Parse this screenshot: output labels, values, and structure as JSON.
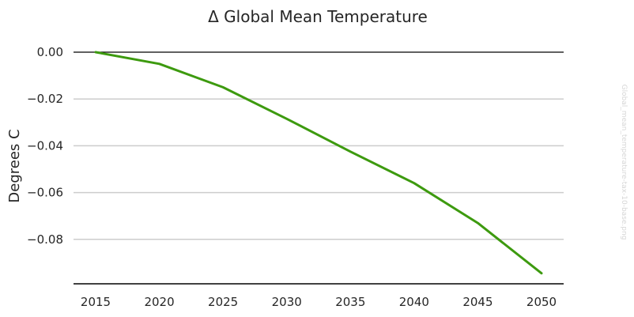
{
  "chart_data": {
    "type": "line",
    "title": "Δ Global Mean Temperature",
    "ylabel": "Degrees C",
    "xlabel": "",
    "x": [
      2015,
      2020,
      2025,
      2030,
      2035,
      2040,
      2045,
      2050
    ],
    "series": [
      {
        "values": [
          0.0,
          -0.005,
          -0.015,
          -0.0285,
          -0.0425,
          -0.056,
          -0.073,
          -0.0945
        ],
        "color": "#3d9a0f"
      }
    ],
    "x_ticks": [
      "2015",
      "2020",
      "2025",
      "2030",
      "2035",
      "2040",
      "2045",
      "2050"
    ],
    "y_ticks": [
      {
        "value": 0.0,
        "label": "0.00"
      },
      {
        "value": -0.02,
        "label": "−0.02"
      },
      {
        "value": -0.04,
        "label": "−0.04"
      },
      {
        "value": -0.06,
        "label": "−0.06"
      },
      {
        "value": -0.08,
        "label": "−0.08"
      }
    ],
    "xlim": [
      2015,
      2050
    ],
    "ylim": [
      -0.099,
      0.0
    ],
    "grid": true,
    "watermark": "Global_mean_temperature-tax-10-base.png"
  }
}
